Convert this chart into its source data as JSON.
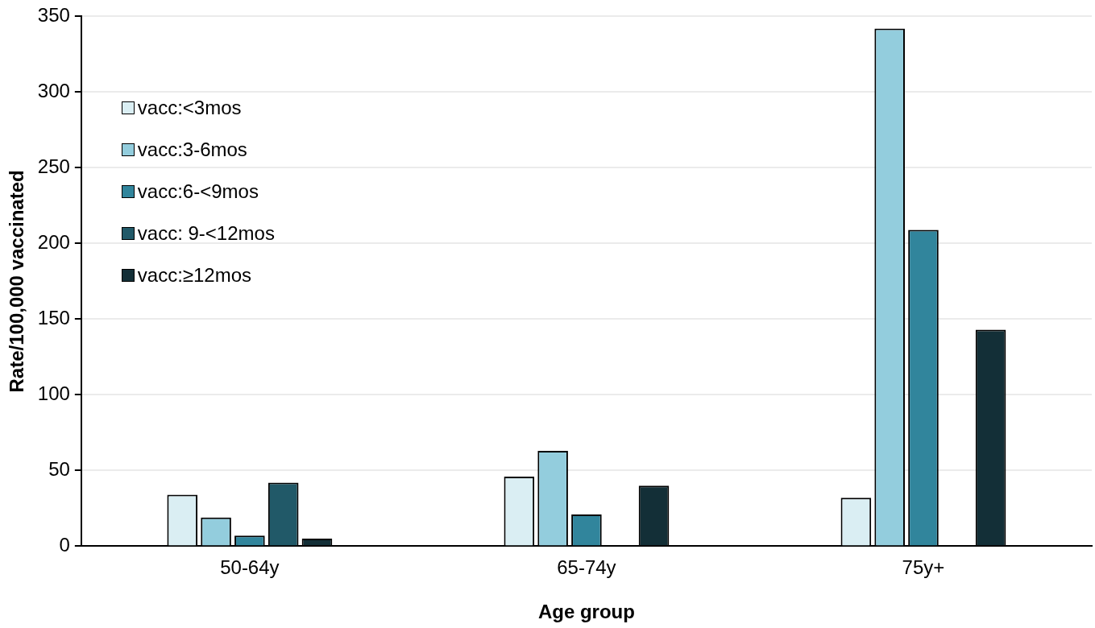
{
  "chart_data": {
    "type": "bar",
    "xlabel": "Age group",
    "ylabel": "Rate/100,000 vaccinated",
    "categories": [
      "50-64y",
      "65-74y",
      "75y+"
    ],
    "series": [
      {
        "name": "vacc:<3mos",
        "color": "#daeef3",
        "values": [
          34,
          46,
          32
        ]
      },
      {
        "name": "vacc:3-6mos",
        "color": "#93cddd",
        "values": [
          19,
          63,
          342
        ]
      },
      {
        "name": "vacc:6-<9mos",
        "color": "#31859c",
        "values": [
          7,
          21,
          209
        ]
      },
      {
        "name": "vacc: 9-<12mos",
        "color": "#215968",
        "values": [
          42,
          null,
          null
        ]
      },
      {
        "name": "vacc:≥12mos",
        "color": "#132f37",
        "values": [
          5,
          40,
          143
        ]
      }
    ],
    "ylim": [
      0,
      350
    ],
    "yticks": [
      0,
      50,
      100,
      150,
      200,
      250,
      300,
      350
    ],
    "grid": "y",
    "legend": "top left"
  }
}
